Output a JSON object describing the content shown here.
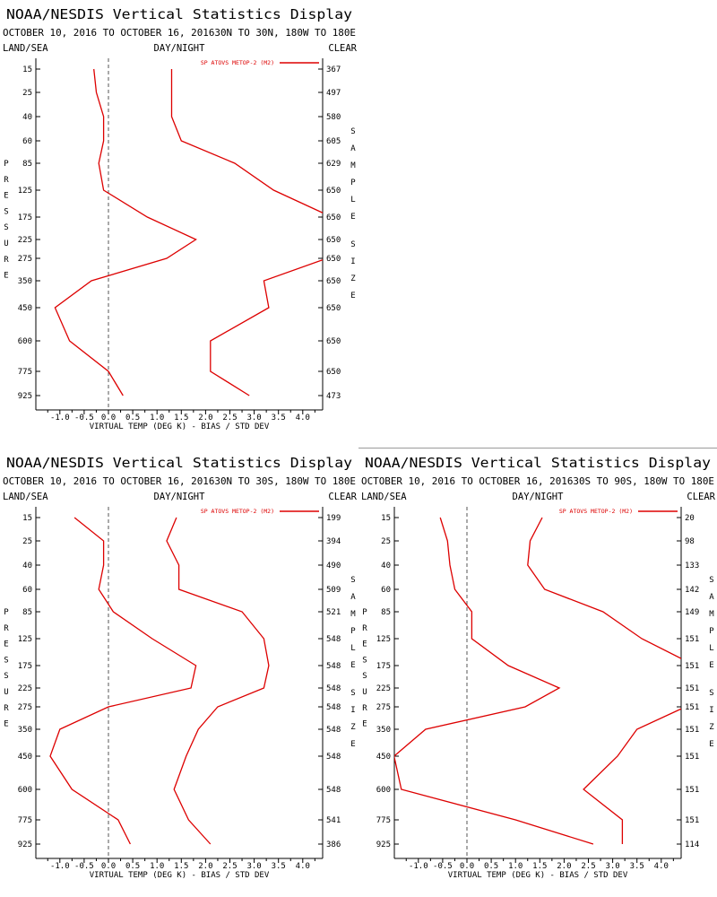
{
  "colors": {
    "series": "#dd0000",
    "zero_line": "#555555",
    "axis": "#000000",
    "background": "#ffffff"
  },
  "chart_data": [
    {
      "type": "line",
      "title": "NOAA/NESDIS Vertical Statistics Display",
      "subtitle": "OCTOBER 10, 2016 TO OCTOBER 16, 201630N TO 30N, 180W TO 180E",
      "header_left": "LAND/SEA",
      "header_center": "DAY/NIGHT",
      "header_right": "CLEAR",
      "legend": "SP ATOVS METOP-2 (M2)",
      "legend_position": "top-right",
      "xlabel": "VIRTUAL TEMP (DEG K) - BIAS / STD DEV",
      "ylabel": "PRESSURE",
      "right_label": "SAMPLE SIZE",
      "xlim": [
        -1.5,
        4.5
      ],
      "x_ticks": [
        "-1.0",
        "-0.5",
        "0.0",
        "0.5",
        "1.0",
        "1.5",
        "2.0",
        "2.5",
        "3.0",
        "3.5",
        "4.0"
      ],
      "y_levels": [
        "15",
        "25",
        "40",
        "60",
        "85",
        "125",
        "175",
        "225",
        "275",
        "350",
        "450",
        "600",
        "775",
        "925"
      ],
      "sample_sizes": [
        "367",
        "497",
        "580",
        "605",
        "629",
        "650",
        "650",
        "650",
        "650",
        "650",
        "650",
        "650",
        "650",
        "473"
      ],
      "series": [
        {
          "name": "bias",
          "values": [
            -0.3,
            -0.25,
            -0.1,
            -0.1,
            -0.2,
            -0.1,
            0.8,
            1.8,
            1.2,
            -0.35,
            -1.1,
            -0.8,
            0.0,
            0.3
          ]
        },
        {
          "name": "std dev",
          "values": [
            1.3,
            1.3,
            1.3,
            1.5,
            2.6,
            3.4,
            4.6,
            4.6,
            4.5,
            3.2,
            3.3,
            2.1,
            2.1,
            2.9
          ]
        }
      ]
    },
    {
      "type": "line",
      "title": "NOAA/NESDIS Vertical Statistics Display",
      "subtitle": "OCTOBER 10, 2016 TO OCTOBER 16, 201630N TO 30S, 180W TO 180E",
      "header_left": "LAND/SEA",
      "header_center": "DAY/NIGHT",
      "header_right": "CLEAR",
      "legend": "SP ATOVS METOP-2 (M2)",
      "legend_position": "top-right",
      "xlabel": "VIRTUAL TEMP (DEG K) - BIAS / STD DEV",
      "ylabel": "PRESSURE",
      "right_label": "SAMPLE SIZE",
      "xlim": [
        -1.5,
        4.5
      ],
      "x_ticks": [
        "-1.0",
        "-0.5",
        "0.0",
        "0.5",
        "1.0",
        "1.5",
        "2.0",
        "2.5",
        "3.0",
        "3.5",
        "4.0"
      ],
      "y_levels": [
        "15",
        "25",
        "40",
        "60",
        "85",
        "125",
        "175",
        "225",
        "275",
        "350",
        "450",
        "600",
        "775",
        "925"
      ],
      "sample_sizes": [
        "199",
        "394",
        "490",
        "509",
        "521",
        "548",
        "548",
        "548",
        "548",
        "548",
        "548",
        "548",
        "541",
        "386"
      ],
      "series": [
        {
          "name": "bias",
          "values": [
            -0.7,
            -0.1,
            -0.1,
            -0.2,
            0.1,
            0.9,
            1.8,
            1.7,
            0.0,
            -1.0,
            -1.2,
            -0.75,
            0.2,
            0.45
          ]
        },
        {
          "name": "std dev",
          "values": [
            1.4,
            1.2,
            1.45,
            1.45,
            2.75,
            3.2,
            3.3,
            3.2,
            2.25,
            1.85,
            1.6,
            1.35,
            1.65,
            2.1
          ]
        }
      ]
    },
    {
      "type": "line",
      "title": "NOAA/NESDIS Vertical Statistics Display",
      "subtitle": "OCTOBER 10, 2016 TO OCTOBER 16, 201630S TO 90S, 180W TO 180E",
      "header_left": "LAND/SEA",
      "header_center": "DAY/NIGHT",
      "header_right": "CLEAR",
      "legend": "SP ATOVS METOP-2 (M2)",
      "legend_position": "top-right",
      "xlabel": "VIRTUAL TEMP (DEG K) - BIAS / STD DEV",
      "ylabel": "PRESSURE",
      "right_label": "SAMPLE SIZE",
      "xlim": [
        -1.5,
        4.5
      ],
      "x_ticks": [
        "-1.0",
        "-0.5",
        "0.0",
        "0.5",
        "1.0",
        "1.5",
        "2.0",
        "2.5",
        "3.0",
        "3.5",
        "4.0"
      ],
      "y_levels": [
        "15",
        "25",
        "40",
        "60",
        "85",
        "125",
        "175",
        "225",
        "275",
        "350",
        "450",
        "600",
        "775",
        "925"
      ],
      "sample_sizes": [
        "20",
        "98",
        "133",
        "142",
        "149",
        "151",
        "151",
        "151",
        "151",
        "151",
        "151",
        "151",
        "151",
        "114"
      ],
      "series": [
        {
          "name": "bias",
          "values": [
            -0.55,
            -0.4,
            -0.35,
            -0.25,
            0.1,
            0.1,
            0.85,
            1.9,
            1.2,
            -0.85,
            -1.5,
            -1.35,
            1.0,
            2.6
          ]
        },
        {
          "name": "std dev",
          "values": [
            1.55,
            1.3,
            1.25,
            1.6,
            2.8,
            3.6,
            4.7,
            4.7,
            4.5,
            3.5,
            3.1,
            2.4,
            3.2,
            3.2
          ]
        }
      ]
    }
  ]
}
